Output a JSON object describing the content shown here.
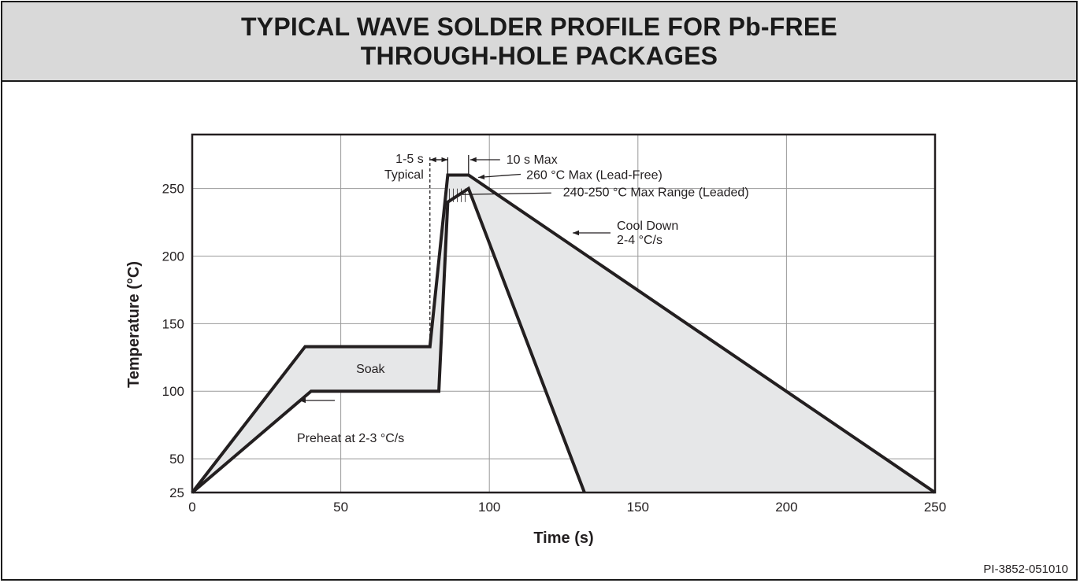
{
  "header": {
    "title_line1": "TYPICAL WAVE SOLDER PROFILE FOR Pb-FREE",
    "title_line2": "THROUGH-HOLE PACKAGES"
  },
  "document_id": "PI-3852-051010",
  "colors": {
    "fill": "#e6e7e8",
    "line": "#231f20",
    "header_bg": "#d9d9d9"
  },
  "chart_data": {
    "type": "area",
    "title": "TYPICAL WAVE SOLDER PROFILE FOR Pb-FREE THROUGH-HOLE PACKAGES",
    "xlabel": "Time (s)",
    "ylabel": "Temperature (°C)",
    "xlim": [
      0,
      250
    ],
    "ylim": [
      25,
      290
    ],
    "x_ticks": [
      0,
      50,
      100,
      150,
      200,
      250
    ],
    "x_tick_labels": [
      "0",
      "50",
      "100",
      "150",
      "200",
      "250"
    ],
    "y_ticks": [
      25,
      50,
      100,
      150,
      200,
      250
    ],
    "y_tick_labels": [
      "25",
      "50",
      "100",
      "150",
      "200",
      "250"
    ],
    "grid": true,
    "series": [
      {
        "name": "",
        "points": [
          [
            0,
            25
          ],
          [
            38,
            133
          ],
          [
            80,
            133
          ],
          [
            86,
            260
          ],
          [
            93,
            260
          ],
          [
            250,
            25
          ]
        ]
      },
      {
        "name": "",
        "points": [
          [
            0,
            25
          ],
          [
            40,
            100
          ],
          [
            83,
            100
          ],
          [
            86,
            240
          ],
          [
            93,
            250
          ],
          [
            132,
            25
          ]
        ]
      }
    ],
    "hatched_region": {
      "x": [
        86,
        93
      ],
      "y": [
        240,
        250
      ]
    },
    "annotations": [
      {
        "id": "typical-time",
        "line1": "1-5 s",
        "line2": "Typical",
        "span_x": [
          80,
          86
        ]
      },
      {
        "id": "max-time",
        "text": "10 s Max",
        "at_x": 93
      },
      {
        "id": "peak-lead-free",
        "text": "260 °C Max (Lead-Free)",
        "at": [
          96,
          260
        ]
      },
      {
        "id": "peak-leaded",
        "text": "240-250 °C Max Range (Leaded)",
        "at": [
          93,
          245
        ]
      },
      {
        "id": "cool-down",
        "line1": "Cool Down",
        "line2": "2-4 °C/s"
      },
      {
        "id": "soak",
        "text": "Soak"
      },
      {
        "id": "preheat",
        "text": "Preheat at 2-3 °C/s"
      }
    ]
  }
}
